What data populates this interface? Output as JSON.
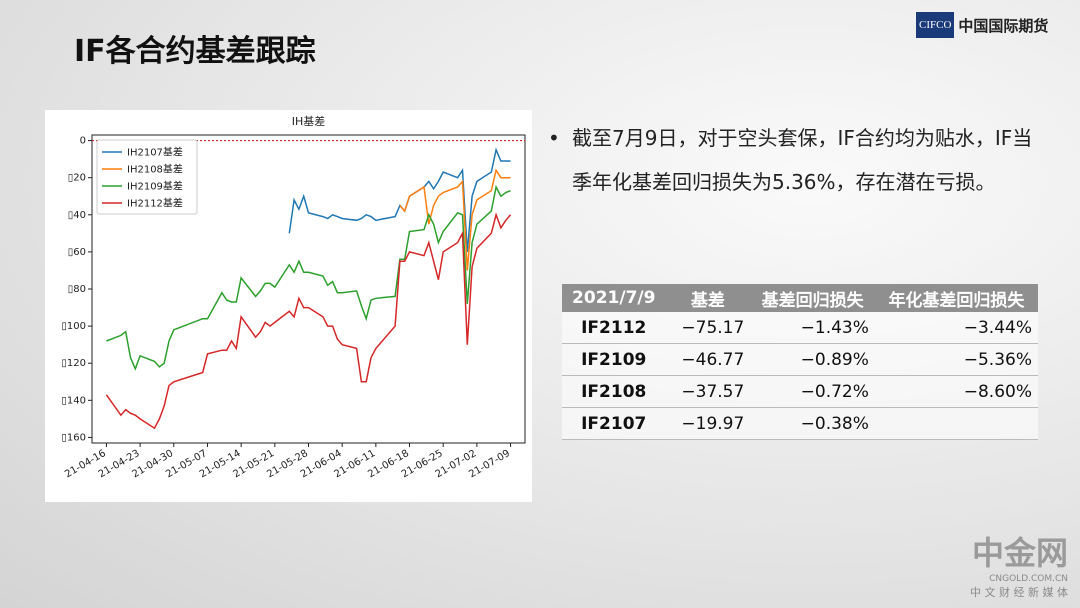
{
  "header": {
    "title": "IF各合约基差跟踪",
    "logo_mark": "CIFCO",
    "logo_text": "中国国际期货"
  },
  "chart_data": {
    "type": "line",
    "title": "IH基差",
    "x": [
      "21-04-16",
      "21-04-19",
      "21-04-20",
      "21-04-21",
      "21-04-22",
      "21-04-23",
      "21-04-26",
      "21-04-27",
      "21-04-28",
      "21-04-29",
      "21-04-30",
      "21-05-06",
      "21-05-07",
      "21-05-10",
      "21-05-11",
      "21-05-12",
      "21-05-13",
      "21-05-14",
      "21-05-17",
      "21-05-18",
      "21-05-19",
      "21-05-20",
      "21-05-21",
      "21-05-24",
      "21-05-25",
      "21-05-26",
      "21-05-27",
      "21-05-28",
      "21-05-31",
      "21-06-01",
      "21-06-02",
      "21-06-03",
      "21-06-04",
      "21-06-07",
      "21-06-08",
      "21-06-09",
      "21-06-10",
      "21-06-11",
      "21-06-15",
      "21-06-16",
      "21-06-17",
      "21-06-18",
      "21-06-21",
      "21-06-22",
      "21-06-23",
      "21-06-24",
      "21-06-25",
      "21-06-28",
      "21-06-29",
      "21-06-30",
      "21-07-01",
      "21-07-02",
      "21-07-05",
      "21-07-06",
      "21-07-07",
      "21-07-08",
      "21-07-09"
    ],
    "series": [
      {
        "name": "IH2107基差",
        "color": "#1f77b4",
        "values": [
          null,
          null,
          null,
          null,
          null,
          null,
          null,
          null,
          null,
          null,
          null,
          null,
          null,
          null,
          null,
          null,
          null,
          null,
          null,
          null,
          null,
          null,
          null,
          -50,
          -32,
          -37,
          -30,
          -39,
          -41,
          -42,
          -40,
          -41,
          -42,
          -43,
          -42,
          -40,
          -41,
          -43,
          -41,
          -35,
          -38,
          -30,
          -25,
          -22,
          -26,
          -22,
          -17,
          -20,
          -16,
          -60,
          -30,
          -22,
          -17,
          -5,
          -11,
          -11,
          -11
        ]
      },
      {
        "name": "IH2108基差",
        "color": "#ff7f0e",
        "values": [
          null,
          null,
          null,
          null,
          null,
          null,
          null,
          null,
          null,
          null,
          null,
          null,
          null,
          null,
          null,
          null,
          null,
          null,
          null,
          null,
          null,
          null,
          null,
          null,
          null,
          null,
          null,
          null,
          null,
          null,
          null,
          null,
          null,
          null,
          null,
          null,
          null,
          null,
          null,
          -35,
          -38,
          -30,
          -25,
          -45,
          -35,
          -30,
          -28,
          -25,
          -22,
          -70,
          -40,
          -32,
          -27,
          -16,
          -20,
          -20,
          -20
        ]
      },
      {
        "name": "IH2109基差",
        "color": "#2ca02c",
        "values": [
          -108,
          -105,
          -103,
          -117,
          -123,
          -116,
          -119,
          -122,
          -120,
          -108,
          -102,
          -96,
          -96,
          -82,
          -86,
          -87,
          -87,
          -74,
          -84,
          -81,
          -77,
          -77,
          -79,
          -67,
          -71,
          -65,
          -71,
          -71,
          -73,
          -78,
          -76,
          -82,
          -82,
          -81,
          -89,
          -96,
          -86,
          -85,
          -84,
          -64,
          -64,
          -49,
          -48,
          -40,
          -45,
          -55,
          -49,
          -39,
          -40,
          -88,
          -55,
          -45,
          -38,
          -25,
          -30,
          -28,
          -27
        ]
      },
      {
        "name": "IH2112基差",
        "color": "#d62728",
        "values": [
          -137,
          -148,
          -145,
          -147,
          -148,
          -150,
          -155,
          -150,
          -143,
          -132,
          -130,
          -125,
          -115,
          -113,
          -113,
          -108,
          -112,
          -95,
          -106,
          -103,
          -98,
          -100,
          -98,
          -92,
          -95,
          -85,
          -90,
          -90,
          -95,
          -100,
          -100,
          -107,
          -110,
          -112,
          -130,
          -130,
          -117,
          -112,
          -100,
          -65,
          -65,
          -60,
          -62,
          -55,
          -65,
          -75,
          -60,
          -55,
          -50,
          -110,
          -68,
          -58,
          -50,
          -40,
          -47,
          -43,
          -40
        ]
      }
    ],
    "xlim": [
      "21-04-13",
      "21-07-12"
    ],
    "xticks": [
      "21-04-16",
      "21-04-23",
      "21-04-30",
      "21-05-07",
      "21-05-14",
      "21-05-21",
      "21-05-28",
      "21-06-04",
      "21-06-11",
      "21-06-18",
      "21-06-25",
      "21-07-02",
      "21-07-09"
    ],
    "ylim": [
      -163,
      3
    ],
    "yticks": [
      0,
      {
        "value": -20,
        "label": "▯20"
      },
      {
        "value": -40,
        "label": "▯40"
      },
      {
        "value": -60,
        "label": "▯60"
      },
      {
        "value": -80,
        "label": "▯80"
      },
      {
        "value": -100,
        "label": "▯100"
      },
      {
        "value": -120,
        "label": "▯120"
      },
      {
        "value": -140,
        "label": "▯140"
      },
      {
        "value": -160,
        "label": "▯160"
      }
    ],
    "reference_line": {
      "value": 0,
      "color": "#d62728"
    },
    "legend": "upper left",
    "grid": false
  },
  "bullet": "截至7月9日，对于空头套保，IF合约均为贴水，IF当季年化基差回归损失为5.36%，存在潜在亏损。",
  "table": {
    "header": [
      "2021/7/9",
      "基差",
      "基差回归损失",
      "年化基差回归损失"
    ],
    "rows": [
      [
        "IF2112",
        "−75.17",
        "−1.43%",
        "−3.44%"
      ],
      [
        "IF2109",
        "−46.77",
        "−0.89%",
        "−5.36%"
      ],
      [
        "IF2108",
        "−37.57",
        "−0.72%",
        "−8.60%"
      ],
      [
        "IF2107",
        "−19.97",
        "−0.38%"
      ]
    ]
  },
  "watermark": {
    "name": "中金网",
    "url": "CNGOLD.COM.CN",
    "slogan": "中 文 财 经 新 媒 体"
  }
}
